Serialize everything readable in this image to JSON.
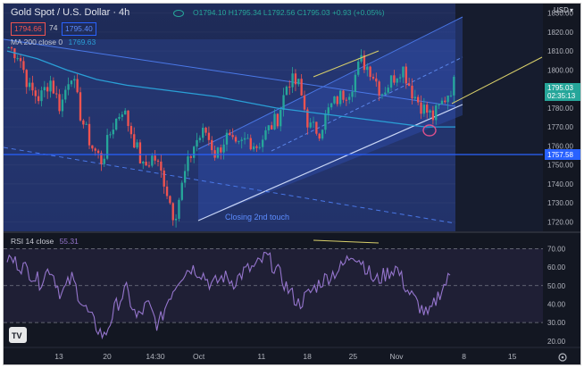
{
  "header": {
    "symbol": "Gold Spot / U.S. Dollar · 4h",
    "ohlc_text": "O1794.10 H1795.34 L1792.56 C1795.03 +0.93 (+0.05%)",
    "bid": "1794.66",
    "spread": "74",
    "ask": "1795.40",
    "currency": "USD",
    "currency_caret": "▾",
    "ma_label": "MA 200 close 0",
    "ma_value": "1769.63",
    "rsi_label": "RSI 14 close",
    "rsi_value": "55.31"
  },
  "annotations": {
    "closing_text": "Closing 2nd touch",
    "price_tag": "1795.03",
    "countdown": "02:35:13",
    "level_tag": "1757.58",
    "logo": "TV"
  },
  "colors": {
    "background": "#131722",
    "up_candle": "#26a69a",
    "down_candle": "#ef5350",
    "ma_line": "#2a9fd6",
    "rsi_line": "#9575cd",
    "channel_fill": "#2d4ea8",
    "trend_line": "#d8cf6a",
    "level_line": "#2962ff"
  },
  "chart_data": [
    {
      "type": "candlestick",
      "title": "Gold Spot / U.S. Dollar · 4h",
      "ylim": [
        1715,
        1835
      ],
      "y_ticks": [
        1720,
        1730,
        1740,
        1750,
        1760,
        1770,
        1780,
        1790,
        1800,
        1810,
        1820,
        1830
      ],
      "x_tick_labels": [
        "13",
        "20",
        "14:30",
        "Oct",
        "11",
        "18",
        "25",
        "Nov",
        "8",
        "15"
      ],
      "close_path": [
        1812,
        1808,
        1790,
        1785,
        1795,
        1780,
        1800,
        1775,
        1760,
        1752,
        1770,
        1780,
        1765,
        1748,
        1755,
        1742,
        1722,
        1745,
        1762,
        1768,
        1755,
        1765,
        1758,
        1764,
        1760,
        1768,
        1775,
        1795,
        1792,
        1770,
        1768,
        1780,
        1786,
        1790,
        1805,
        1800,
        1788,
        1795,
        1802,
        1788,
        1780,
        1775,
        1784,
        1793
      ],
      "ma200": [
        1810,
        1806,
        1800,
        1795,
        1792,
        1790,
        1788,
        1786,
        1783,
        1780,
        1778,
        1776,
        1774,
        1772,
        1770,
        1770
      ],
      "horizontal_level": 1757.58,
      "last_price": 1795.03,
      "bid": 1794.66,
      "ask": 1795.4
    },
    {
      "type": "line",
      "name": "RSI 14 close",
      "ylim": [
        17,
        76
      ],
      "y_ticks": [
        20,
        30,
        40,
        50,
        60,
        70
      ],
      "upper_band": 70,
      "middle_band": 50,
      "lower_band": 30,
      "last_value": 55.31,
      "values": [
        65,
        62,
        58,
        52,
        60,
        45,
        54,
        40,
        30,
        22,
        38,
        48,
        32,
        40,
        28,
        44,
        55,
        60,
        57,
        50,
        55,
        52,
        58,
        60,
        66,
        58,
        48,
        40,
        46,
        52,
        56,
        60,
        68,
        62,
        52,
        56,
        60,
        48,
        40,
        33,
        46,
        55
      ]
    }
  ]
}
